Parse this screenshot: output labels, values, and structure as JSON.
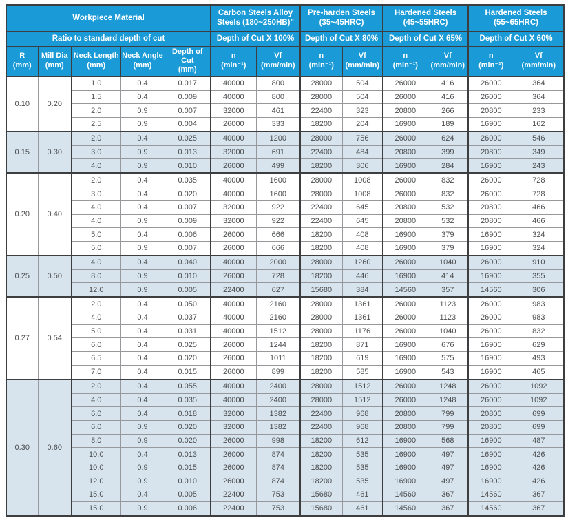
{
  "colors": {
    "header_bg": "#1a9ad6",
    "header_text": "#ffffff",
    "shaded_row_bg": "#d7e4ed",
    "body_text": "#4c4e50",
    "border_dark": "#3d3e40",
    "border_light": "#96989b"
  },
  "header": {
    "workpiece_material": "Workpiece Material",
    "ratio_label": "Ratio to standard depth of cut",
    "material_groups": [
      {
        "name": "Carbon Steels Alloy Steels (180~250HB)\"",
        "depth": "Depth of Cut X 100%"
      },
      {
        "name": "Pre-harden Steels (35~45HRC)",
        "depth": "Depth of Cut X 80%"
      },
      {
        "name": "Hardened Steels (45~55HRC)",
        "depth": "Depth of Cut X 65%"
      },
      {
        "name": "Hardened Steels (55~65HRC)",
        "depth": "Depth of Cut X 60%"
      }
    ],
    "param_columns": [
      {
        "label": "R",
        "unit": "(mm)"
      },
      {
        "label": "Mill Dia",
        "unit": "(mm)"
      },
      {
        "label": "Neck Length",
        "unit": "(mm)"
      },
      {
        "label": "Neck Angle",
        "unit": "(mm)"
      },
      {
        "label": "Depth of Cut",
        "unit": "(mm)"
      }
    ],
    "speed_columns": [
      {
        "label": "n",
        "unit": "(min⁻¹)"
      },
      {
        "label": "Vf",
        "unit": "(mm/min)"
      }
    ]
  },
  "row_groups": [
    {
      "r": "0.10",
      "mill_dia": "0.20",
      "shaded": false,
      "rows": [
        [
          "1.0",
          "0.4",
          "0.017",
          "40000",
          "800",
          "28000",
          "504",
          "26000",
          "416",
          "26000",
          "364"
        ],
        [
          "1.5",
          "0.4",
          "0.009",
          "40000",
          "800",
          "28000",
          "504",
          "26000",
          "416",
          "26000",
          "364"
        ],
        [
          "2.0",
          "0.9",
          "0.007",
          "32000",
          "461",
          "22400",
          "323",
          "20800",
          "266",
          "20800",
          "233"
        ],
        [
          "2.5",
          "0.9",
          "0.004",
          "26000",
          "333",
          "18200",
          "204",
          "16900",
          "189",
          "16900",
          "162"
        ]
      ]
    },
    {
      "r": "0.15",
      "mill_dia": "0.30",
      "shaded": true,
      "rows": [
        [
          "2.0",
          "0.4",
          "0.025",
          "40000",
          "1200",
          "28000",
          "756",
          "26000",
          "624",
          "26000",
          "546"
        ],
        [
          "3.0",
          "0.9",
          "0.013",
          "32000",
          "691",
          "22400",
          "484",
          "20800",
          "399",
          "20800",
          "349"
        ],
        [
          "4.0",
          "0.9",
          "0.010",
          "26000",
          "499",
          "18200",
          "306",
          "16900",
          "284",
          "16900",
          "243"
        ]
      ]
    },
    {
      "r": "0.20",
      "mill_dia": "0.40",
      "shaded": false,
      "rows": [
        [
          "2.0",
          "0.4",
          "0.035",
          "40000",
          "1600",
          "28000",
          "1008",
          "26000",
          "832",
          "26000",
          "728"
        ],
        [
          "3.0",
          "0.4",
          "0.020",
          "40000",
          "1600",
          "28000",
          "1008",
          "26000",
          "832",
          "26000",
          "728"
        ],
        [
          "4.0",
          "0.4",
          "0.007",
          "32000",
          "922",
          "22400",
          "645",
          "20800",
          "532",
          "20800",
          "466"
        ],
        [
          "4.0",
          "0.9",
          "0.009",
          "32000",
          "922",
          "22400",
          "645",
          "20800",
          "532",
          "20800",
          "466"
        ],
        [
          "5.0",
          "0.4",
          "0.006",
          "26000",
          "666",
          "18200",
          "408",
          "16900",
          "379",
          "16900",
          "324"
        ],
        [
          "5.0",
          "0.9",
          "0.007",
          "26000",
          "666",
          "18200",
          "408",
          "16900",
          "379",
          "16900",
          "324"
        ]
      ]
    },
    {
      "r": "0.25",
      "mill_dia": "0.50",
      "shaded": true,
      "rows": [
        [
          "4.0",
          "0.4",
          "0.040",
          "40000",
          "2000",
          "28000",
          "1260",
          "26000",
          "1040",
          "26000",
          "910"
        ],
        [
          "8.0",
          "0.9",
          "0.010",
          "26000",
          "728",
          "18200",
          "446",
          "16900",
          "414",
          "16900",
          "355"
        ],
        [
          "12.0",
          "0.9",
          "0.005",
          "22400",
          "627",
          "15680",
          "384",
          "14560",
          "357",
          "14560",
          "306"
        ]
      ]
    },
    {
      "r": "0.27",
      "mill_dia": "0.54",
      "shaded": false,
      "rows": [
        [
          "2.0",
          "0.4",
          "0.050",
          "40000",
          "2160",
          "28000",
          "1361",
          "26000",
          "1123",
          "26000",
          "983"
        ],
        [
          "4.0",
          "0.4",
          "0.037",
          "40000",
          "2160",
          "28000",
          "1361",
          "26000",
          "1123",
          "26000",
          "983"
        ],
        [
          "5.0",
          "0.4",
          "0.031",
          "40000",
          "1512",
          "28000",
          "1176",
          "26000",
          "1040",
          "26000",
          "832"
        ],
        [
          "6.0",
          "0.4",
          "0.025",
          "26000",
          "1244",
          "18200",
          "871",
          "16900",
          "676",
          "16900",
          "629"
        ],
        [
          "6.5",
          "0.4",
          "0.020",
          "26000",
          "1011",
          "18200",
          "619",
          "16900",
          "575",
          "16900",
          "493"
        ],
        [
          "7.0",
          "0.4",
          "0.015",
          "26000",
          "899",
          "18200",
          "585",
          "16900",
          "543",
          "16900",
          "465"
        ]
      ]
    },
    {
      "r": "0.30",
      "mill_dia": "0.60",
      "shaded": true,
      "rows": [
        [
          "2.0",
          "0.4",
          "0.055",
          "40000",
          "2400",
          "28000",
          "1512",
          "26000",
          "1248",
          "26000",
          "1092"
        ],
        [
          "4.0",
          "0.4",
          "0.035",
          "40000",
          "2400",
          "28000",
          "1512",
          "26000",
          "1248",
          "26000",
          "1092"
        ],
        [
          "6.0",
          "0.4",
          "0.018",
          "32000",
          "1382",
          "22400",
          "968",
          "20800",
          "799",
          "20800",
          "699"
        ],
        [
          "6.0",
          "0.9",
          "0.020",
          "32000",
          "1382",
          "22400",
          "968",
          "20800",
          "799",
          "20800",
          "699"
        ],
        [
          "8.0",
          "0.9",
          "0.020",
          "26000",
          "998",
          "18200",
          "612",
          "16900",
          "568",
          "16900",
          "487"
        ],
        [
          "10.0",
          "0.4",
          "0.013",
          "26000",
          "874",
          "18200",
          "535",
          "16900",
          "497",
          "16900",
          "426"
        ],
        [
          "10.0",
          "0.9",
          "0.015",
          "26000",
          "874",
          "18200",
          "535",
          "16900",
          "497",
          "16900",
          "426"
        ],
        [
          "12.0",
          "0.9",
          "0.010",
          "26000",
          "874",
          "18200",
          "535",
          "16900",
          "497",
          "16900",
          "426"
        ],
        [
          "15.0",
          "0.4",
          "0.005",
          "22400",
          "753",
          "15680",
          "461",
          "14560",
          "367",
          "14560",
          "367"
        ],
        [
          "15.0",
          "0.9",
          "0.006",
          "22400",
          "753",
          "15680",
          "461",
          "14560",
          "367",
          "14560",
          "367"
        ]
      ]
    }
  ]
}
